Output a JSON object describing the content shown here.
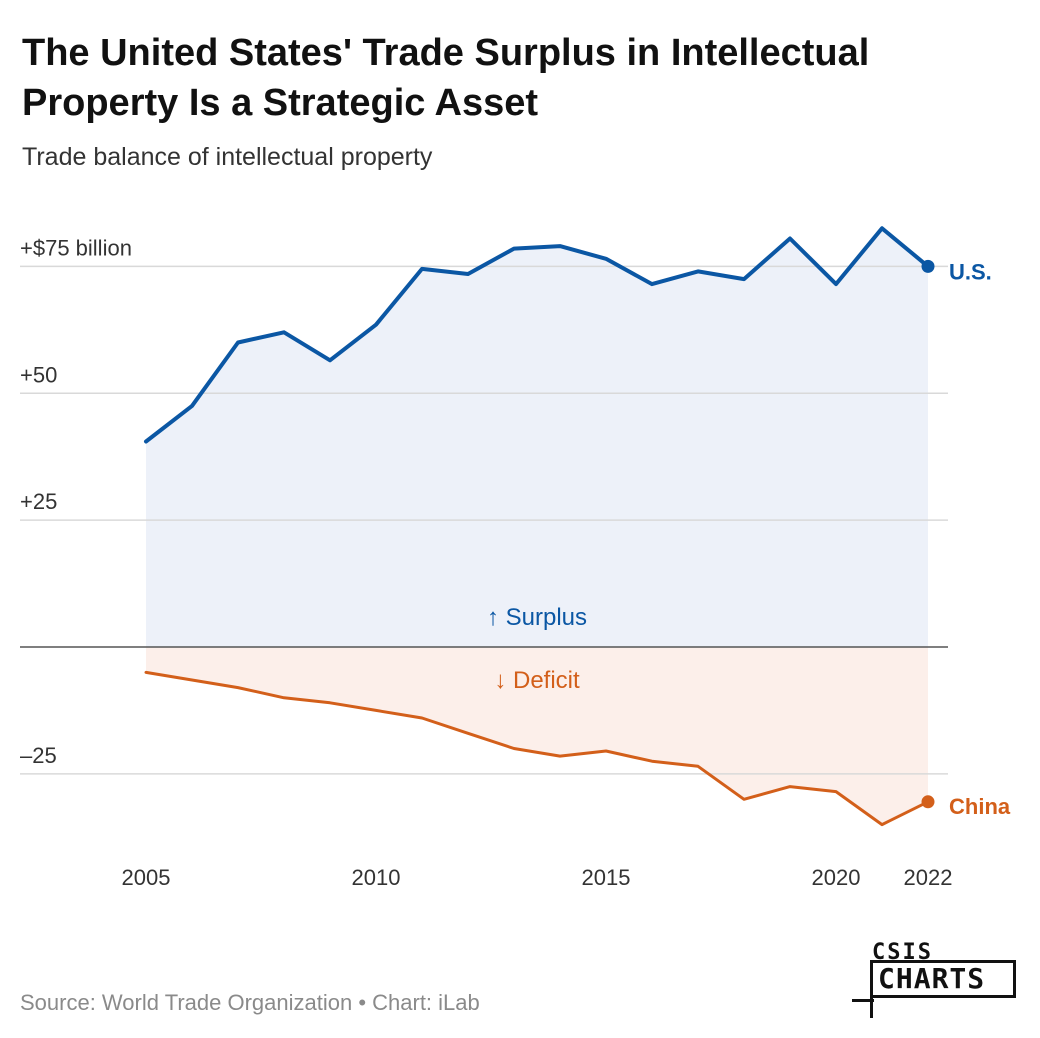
{
  "title": "The United States' Trade Surplus in Intellectual Property Is a Strategic Asset",
  "subtitle": "Trade balance of intellectual property",
  "source": "Source: World Trade Organization • Chart: iLab",
  "logo": {
    "top": "CSIS",
    "bottom": "CHARTS"
  },
  "colors": {
    "us": "#0b57a4",
    "china": "#d35f1a",
    "us_fill": "#edf1f9",
    "china_fill": "#fcefea",
    "grid": "#d9d9d9",
    "axis": "#555555"
  },
  "chart_data": {
    "type": "line",
    "title": "The United States' Trade Surplus in Intellectual Property Is a Strategic Asset",
    "subtitle": "Trade balance of intellectual property",
    "x": [
      2005,
      2006,
      2007,
      2008,
      2009,
      2010,
      2011,
      2012,
      2013,
      2014,
      2015,
      2016,
      2017,
      2018,
      2019,
      2020,
      2021,
      2022
    ],
    "series": [
      {
        "name": "U.S.",
        "values": [
          40.5,
          47.5,
          60,
          62,
          56.5,
          63.5,
          74.5,
          73.5,
          78.5,
          79,
          76.5,
          71.5,
          74,
          72.5,
          80.5,
          71.5,
          82.5,
          75
        ]
      },
      {
        "name": "China",
        "values": [
          -5,
          -6.5,
          -8,
          -10,
          -11,
          -12.5,
          -14,
          -17,
          -20,
          -21.5,
          -20.5,
          -22.5,
          -23.5,
          -30,
          -27.5,
          -28.5,
          -35,
          -30.5
        ]
      }
    ],
    "y_ticks": [
      {
        "value": 75,
        "label": "+$75 billion"
      },
      {
        "value": 50,
        "label": "+50"
      },
      {
        "value": 25,
        "label": "+25"
      },
      {
        "value": -25,
        "label": "–25"
      }
    ],
    "x_ticks": [
      {
        "value": 2005,
        "label": "2005"
      },
      {
        "value": 2010,
        "label": "2010"
      },
      {
        "value": 2015,
        "label": "2015"
      },
      {
        "value": 2020,
        "label": "2020"
      },
      {
        "value": 2022,
        "label": "2022"
      }
    ],
    "annotations": {
      "surplus": "↑ Surplus",
      "deficit": "↓ Deficit"
    },
    "xlim": [
      2005,
      2022
    ],
    "ylim": [
      -40,
      90
    ],
    "ylabel": "",
    "xlabel": "",
    "legend": "direct labels at line ends"
  }
}
